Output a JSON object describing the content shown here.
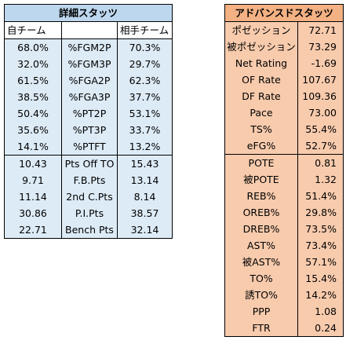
{
  "basic": {
    "title": "詳細スタッツ",
    "col_left": "自チーム",
    "col_mid": "",
    "col_right": "相手チーム",
    "rows": [
      {
        "a": "68.0%",
        "label": "%FGM2P",
        "b": "70.3%"
      },
      {
        "a": "32.0%",
        "label": "%FGM3P",
        "b": "29.7%"
      },
      {
        "a": "61.5%",
        "label": "%FGA2P",
        "b": "62.3%"
      },
      {
        "a": "38.5%",
        "label": "%FGA3P",
        "b": "37.7%"
      },
      {
        "a": "50.4%",
        "label": "%PT2P",
        "b": "53.1%"
      },
      {
        "a": "35.6%",
        "label": "%PT3P",
        "b": "33.7%"
      },
      {
        "a": "14.1%",
        "label": "%PTFT",
        "b": "13.2%"
      },
      {
        "a": "10.43",
        "label": "Pts Off TO",
        "b": "15.43"
      },
      {
        "a": "9.71",
        "label": "F.B.Pts",
        "b": "13.14"
      },
      {
        "a": "11.14",
        "label": "2nd C.Pts",
        "b": "8.14"
      },
      {
        "a": "30.86",
        "label": "P.I.Pts",
        "b": "38.57"
      },
      {
        "a": "22.71",
        "label": "Bench Pts",
        "b": "32.14"
      }
    ]
  },
  "advanced": {
    "title": "アドバンスドスタッツ",
    "rows": [
      {
        "label": "ポゼッション",
        "value": "72.71"
      },
      {
        "label": "被ポゼッション",
        "value": "73.29"
      },
      {
        "label": "Net Rating",
        "value": "-1.69"
      },
      {
        "label": "OF Rate",
        "value": "107.67"
      },
      {
        "label": "DF Rate",
        "value": "109.36"
      },
      {
        "label": "Pace",
        "value": "73.00"
      },
      {
        "label": "TS%",
        "value": "55.4%"
      },
      {
        "label": "eFG%",
        "value": "52.7%"
      },
      {
        "label": "POTE",
        "value": "0.81"
      },
      {
        "label": "被POTE",
        "value": "1.32"
      },
      {
        "label": "REB%",
        "value": "51.4%"
      },
      {
        "label": "OREB%",
        "value": "29.8%"
      },
      {
        "label": "DREB%",
        "value": "73.5%"
      },
      {
        "label": "AST%",
        "value": "73.4%"
      },
      {
        "label": "被AST%",
        "value": "57.1%"
      },
      {
        "label": "TO%",
        "value": "15.4%"
      },
      {
        "label": "誘TO%",
        "value": "14.2%"
      },
      {
        "label": "PPP",
        "value": "1.08"
      },
      {
        "label": "FTR",
        "value": "0.24"
      }
    ]
  }
}
